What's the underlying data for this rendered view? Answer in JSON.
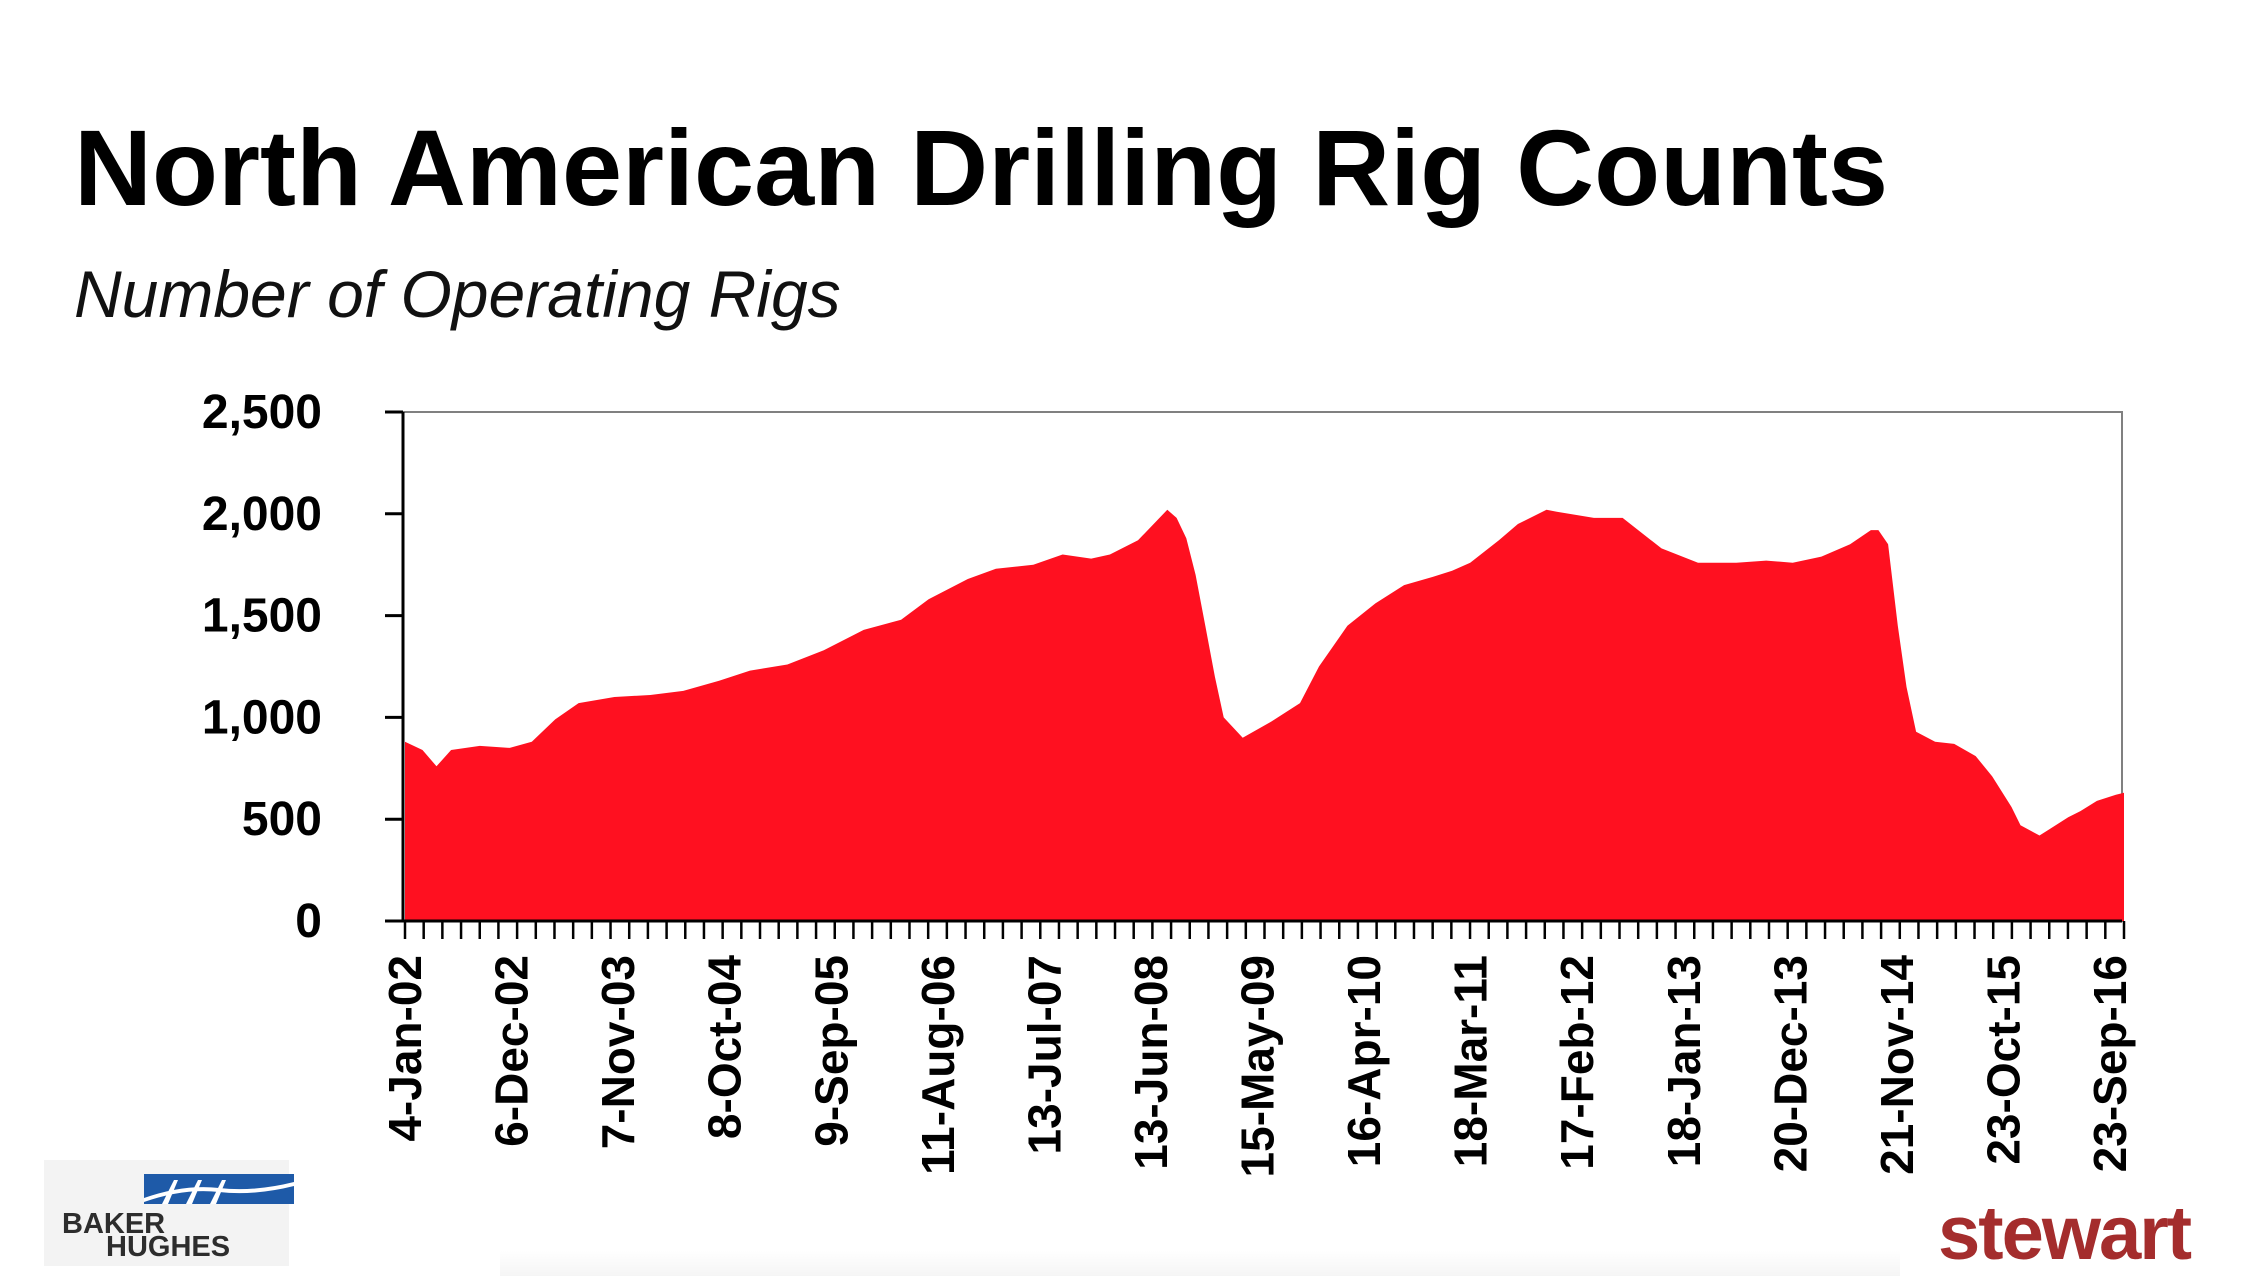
{
  "header": {
    "title": "North American Drilling Rig Counts",
    "subtitle": "Number of Operating Rigs"
  },
  "logos": {
    "baker_hughes_line1": "BAKER",
    "baker_hughes_line2": "HUGHES",
    "stewart": "stewart"
  },
  "colors": {
    "fill": "#ff1020",
    "axis": "#000000",
    "frame": "#808080",
    "stewart": "#a42d2d",
    "baker_hughes_blue": "#1e5aa8"
  },
  "chart_data": {
    "type": "area",
    "title": "North American Drilling Rig Counts",
    "subtitle": "Number of Operating Rigs",
    "xlabel": "",
    "ylabel": "",
    "ylim": [
      0,
      2500
    ],
    "yticks": [
      0,
      500,
      1000,
      1500,
      2000,
      2500
    ],
    "ytick_labels": [
      "0",
      "500",
      "1,000",
      "1,500",
      "2,000",
      "2,500"
    ],
    "xtick_labels": [
      "4-Jan-02",
      "6-Dec-02",
      "7-Nov-03",
      "8-Oct-04",
      "9-Sep-05",
      "11-Aug-06",
      "13-Jul-07",
      "13-Jun-08",
      "15-May-09",
      "16-Apr-10",
      "18-Mar-11",
      "17-Feb-12",
      "18-Jan-13",
      "20-Dec-13",
      "21-Nov-14",
      "23-Oct-15",
      "23-Sep-16"
    ],
    "grid": false,
    "x": [
      "2002-01-04",
      "2002-03-01",
      "2002-04-15",
      "2002-06-01",
      "2002-09-01",
      "2002-12-06",
      "2003-02-15",
      "2003-05-01",
      "2003-07-15",
      "2003-11-07",
      "2004-03-01",
      "2004-06-15",
      "2004-10-08",
      "2005-01-15",
      "2005-05-15",
      "2005-09-09",
      "2006-01-15",
      "2006-05-15",
      "2006-08-11",
      "2006-12-15",
      "2007-03-15",
      "2007-07-13",
      "2007-10-15",
      "2008-01-15",
      "2008-03-15",
      "2008-06-13",
      "2008-09-15",
      "2008-10-15",
      "2008-11-15",
      "2008-12-15",
      "2009-01-15",
      "2009-02-15",
      "2009-03-15",
      "2009-05-15",
      "2009-08-15",
      "2009-11-15",
      "2010-01-15",
      "2010-04-16",
      "2010-07-15",
      "2010-10-15",
      "2011-01-15",
      "2011-03-18",
      "2011-05-15",
      "2011-08-15",
      "2011-10-15",
      "2012-01-15",
      "2012-02-17",
      "2012-06-15",
      "2012-09-15",
      "2013-01-18",
      "2013-05-15",
      "2013-09-15",
      "2013-12-20",
      "2014-03-15",
      "2014-06-15",
      "2014-09-15",
      "2014-11-21",
      "2014-12-15",
      "2015-01-15",
      "2015-02-15",
      "2015-03-15",
      "2015-04-15",
      "2015-06-15",
      "2015-08-15",
      "2015-10-23",
      "2015-12-15",
      "2016-02-15",
      "2016-03-15",
      "2016-05-15",
      "2016-06-15",
      "2016-08-15",
      "2016-09-23",
      "2016-11-15",
      "2017-01-15",
      "2017-02-10"
    ],
    "series": [
      {
        "values": [
          880,
          840,
          760,
          840,
          860,
          850,
          880,
          990,
          1070,
          1100,
          1110,
          1130,
          1180,
          1230,
          1260,
          1330,
          1430,
          1480,
          1580,
          1680,
          1730,
          1750,
          1800,
          1780,
          1800,
          1870,
          2020,
          1980,
          1880,
          1700,
          1450,
          1200,
          1000,
          900,
          980,
          1070,
          1250,
          1450,
          1560,
          1650,
          1690,
          1720,
          1760,
          1870,
          1950,
          2020,
          2010,
          1980,
          1980,
          1830,
          1760,
          1760,
          1770,
          1760,
          1790,
          1850,
          1920,
          1920,
          1850,
          1450,
          1150,
          930,
          880,
          870,
          810,
          710,
          560,
          470,
          420,
          450,
          510,
          540,
          590,
          620,
          630
        ]
      }
    ]
  }
}
